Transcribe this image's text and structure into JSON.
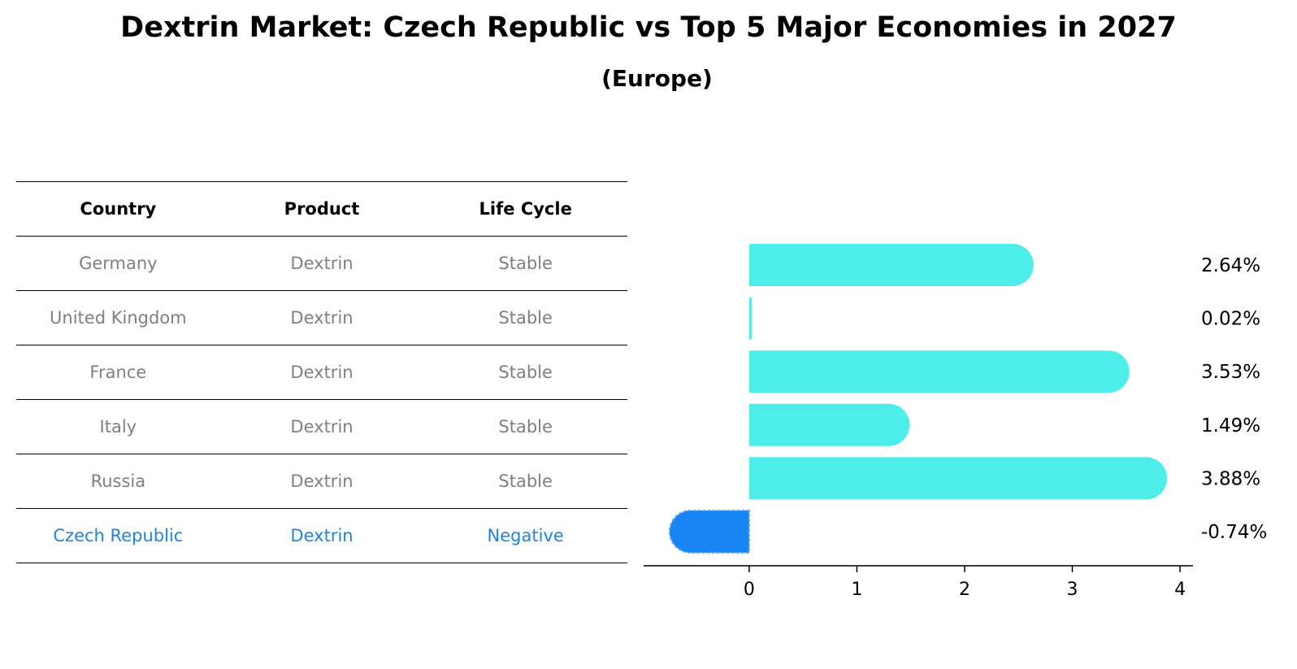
{
  "title": "Dextrin Market: Czech Republic vs Top 5 Major Economies in 2027",
  "subtitle": "(Europe)",
  "table": {
    "headers": [
      "Country",
      "Product",
      "Life Cycle"
    ],
    "rows": [
      [
        "Germany",
        "Dextrin",
        "Stable"
      ],
      [
        "United Kingdom",
        "Dextrin",
        "Stable"
      ],
      [
        "France",
        "Dextrin",
        "Stable"
      ],
      [
        "Italy",
        "Dextrin",
        "Stable"
      ],
      [
        "Russia",
        "Dextrin",
        "Stable"
      ],
      [
        "Czech Republic",
        "Dextrin",
        "Negative"
      ]
    ],
    "highlight_row": 5
  },
  "chart_data": {
    "type": "bar",
    "orientation": "horizontal",
    "categories": [
      "Germany",
      "United Kingdom",
      "France",
      "Italy",
      "Russia",
      "Czech Republic"
    ],
    "values": [
      2.64,
      0.02,
      3.53,
      1.49,
      3.88,
      -0.74
    ],
    "value_labels": [
      "2.64%",
      "0.02%",
      "3.53%",
      "1.49%",
      "3.88%",
      "-0.74%"
    ],
    "xlim": [
      -0.98,
      4.12
    ],
    "xticks": [
      0,
      1,
      2,
      3,
      4
    ],
    "colors": {
      "default": "#4deeea",
      "highlight": "#1a85f5"
    },
    "highlight_index": 5,
    "grid": false
  }
}
